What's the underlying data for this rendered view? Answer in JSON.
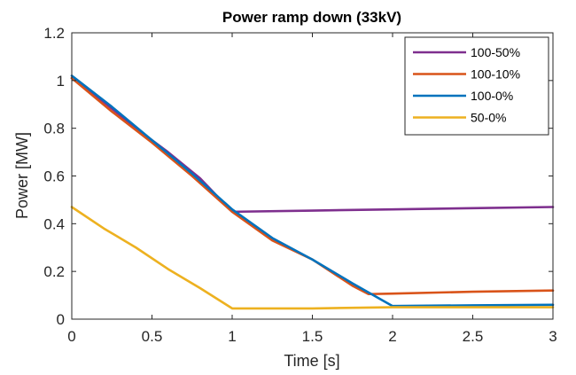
{
  "chart_data": {
    "type": "line",
    "title": "Power ramp down (33kV)",
    "xlabel": "Time [s]",
    "ylabel": "Power [MW]",
    "xlim": [
      0,
      3
    ],
    "ylim": [
      0,
      1.2
    ],
    "xticks": [
      0,
      0.5,
      1,
      1.5,
      2,
      2.5,
      3
    ],
    "xtick_labels": [
      "0",
      "0.5",
      "1",
      "1.5",
      "2",
      "2.5",
      "3"
    ],
    "yticks": [
      0,
      0.2,
      0.4,
      0.6,
      0.8,
      1,
      1.2
    ],
    "ytick_labels": [
      "0",
      "0.2",
      "0.4",
      "0.6",
      "0.8",
      "1",
      "1.2"
    ],
    "grid": false,
    "legend_position": "top-right",
    "series": [
      {
        "name": "100-50%",
        "color": "#7E2F8E",
        "x": [
          0,
          0.2,
          0.4,
          0.6,
          0.8,
          1.0,
          1.5,
          2.0,
          2.5,
          3.0
        ],
        "y": [
          1.01,
          0.91,
          0.8,
          0.7,
          0.59,
          0.45,
          0.455,
          0.46,
          0.465,
          0.47
        ]
      },
      {
        "name": "100-10%",
        "color": "#D95319",
        "x": [
          0,
          0.25,
          0.5,
          0.75,
          1.0,
          1.25,
          1.5,
          1.75,
          1.85,
          2.0,
          2.5,
          3.0
        ],
        "y": [
          1.01,
          0.87,
          0.74,
          0.6,
          0.45,
          0.33,
          0.25,
          0.14,
          0.105,
          0.107,
          0.115,
          0.12
        ]
      },
      {
        "name": "100-0%",
        "color": "#0072BD",
        "x": [
          0,
          0.25,
          0.5,
          0.75,
          1.0,
          1.25,
          1.5,
          1.75,
          2.0,
          2.5,
          3.0
        ],
        "y": [
          1.02,
          0.89,
          0.75,
          0.61,
          0.46,
          0.34,
          0.25,
          0.15,
          0.055,
          0.058,
          0.06
        ]
      },
      {
        "name": "50-0%",
        "color": "#EDB120",
        "x": [
          0,
          0.2,
          0.4,
          0.6,
          0.8,
          1.0,
          1.5,
          2.0,
          2.5,
          3.0
        ],
        "y": [
          0.47,
          0.38,
          0.3,
          0.21,
          0.13,
          0.045,
          0.045,
          0.05,
          0.05,
          0.05
        ]
      }
    ]
  }
}
